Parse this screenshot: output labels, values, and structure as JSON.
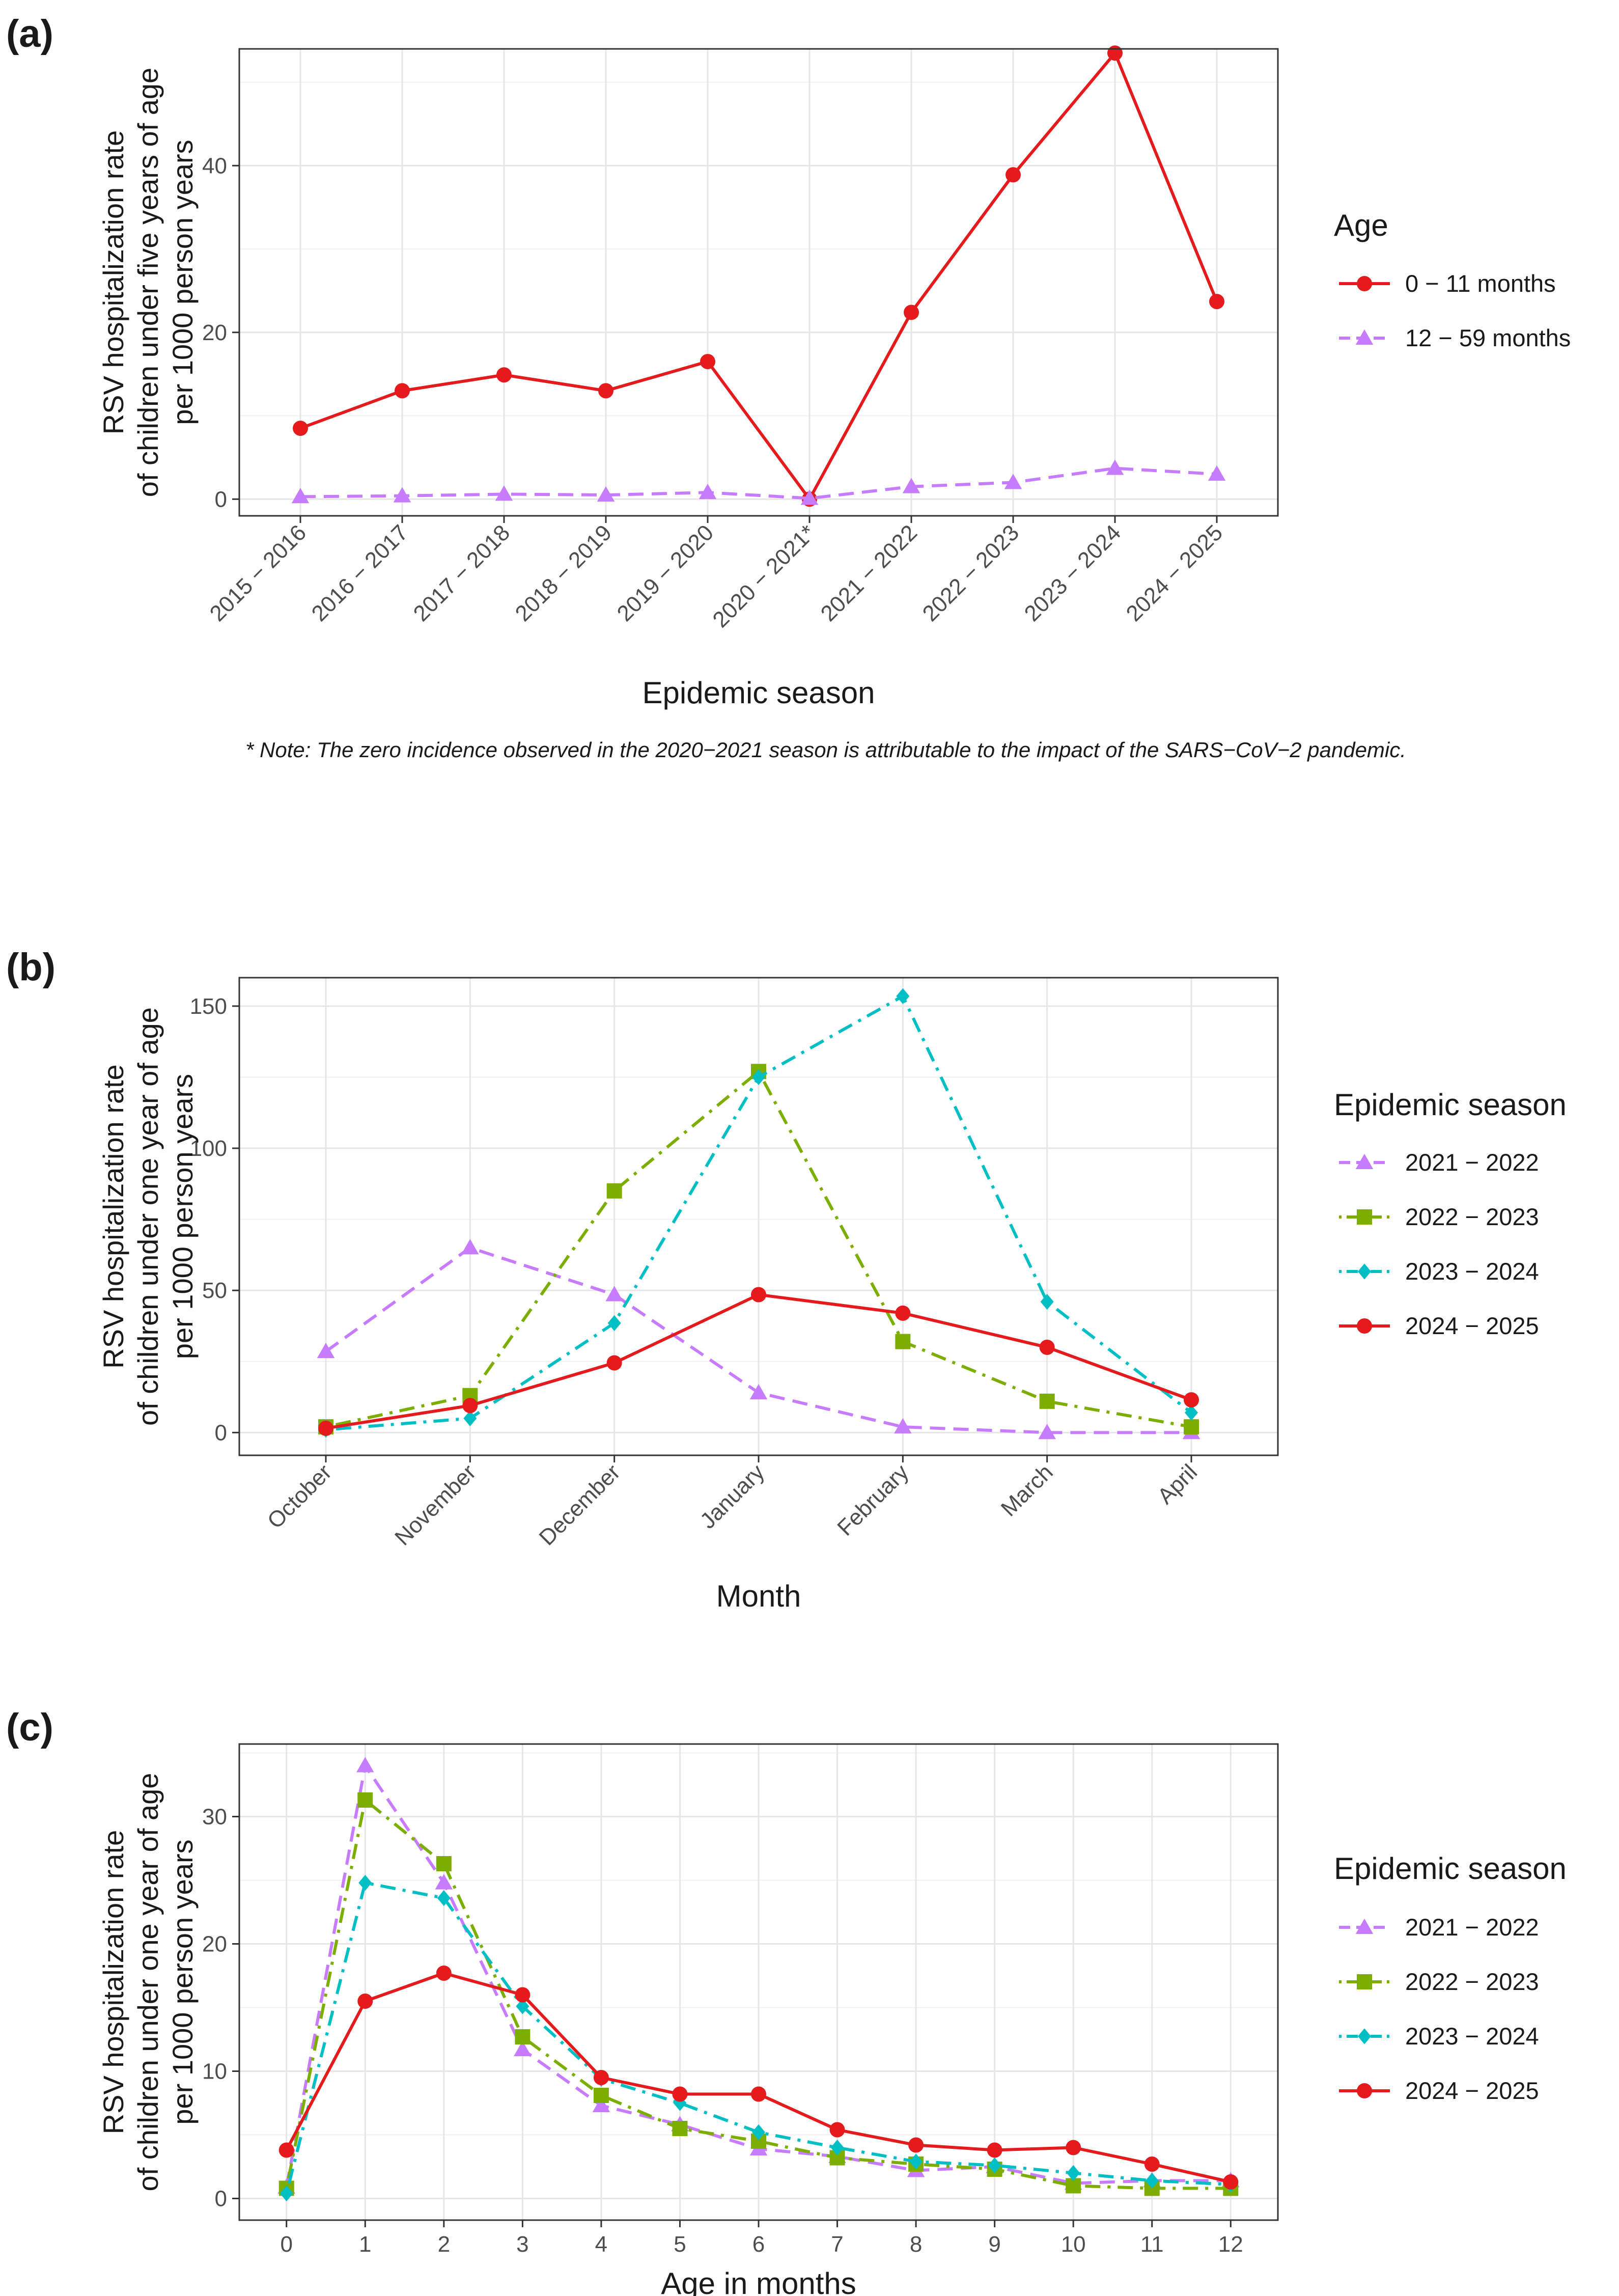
{
  "figure": {
    "panel_letters": [
      "(a)",
      "(b)",
      "(c)"
    ],
    "note": "* Note: The zero incidence observed in the 2020−2021 season is attributable to the impact of the SARS−CoV−2 pandemic."
  },
  "chart_data": [
    {
      "id": "a",
      "type": "line",
      "title": "",
      "xlabel": "Epidemic season",
      "ylabel_lines": [
        "RSV hospitalization rate",
        "of children under five years of age",
        "per 1000 person years"
      ],
      "legend_title": "Age",
      "categories": [
        "2015 − 2016",
        "2016 − 2017",
        "2017 − 2018",
        "2018 − 2019",
        "2019 − 2020",
        "2020 − 2021*",
        "2021 − 2022",
        "2022 − 2023",
        "2023 − 2024",
        "2024 − 2025"
      ],
      "ylim": [
        -2,
        54
      ],
      "yticks": [
        0,
        20,
        40
      ],
      "series": [
        {
          "name": "0 − 11 months",
          "color": "#e41a1c",
          "dash": "solid",
          "marker": "circle",
          "values": [
            8.5,
            13,
            14.9,
            13,
            16.5,
            0,
            22.4,
            38.9,
            53.5,
            23.7
          ]
        },
        {
          "name": "12 − 59 months",
          "color": "#c77cff",
          "dash": "dashed",
          "marker": "triangle",
          "values": [
            0.3,
            0.4,
            0.6,
            0.5,
            0.8,
            0.1,
            1.5,
            2.0,
            3.7,
            3.0
          ]
        }
      ]
    },
    {
      "id": "b",
      "type": "line",
      "title": "",
      "xlabel": "Month",
      "ylabel_lines": [
        "RSV hospitalization rate",
        "of children under one year of age",
        "per 1000 person years"
      ],
      "legend_title": "Epidemic season",
      "categories": [
        "October",
        "November",
        "December",
        "January",
        "February",
        "March",
        "April"
      ],
      "ylim": [
        -8,
        160
      ],
      "yticks": [
        0,
        50,
        100,
        150
      ],
      "series": [
        {
          "name": "2021 − 2022",
          "color": "#c77cff",
          "dash": "dashed",
          "marker": "triangle",
          "values": [
            28.5,
            65,
            48.5,
            14,
            2,
            0,
            0
          ]
        },
        {
          "name": "2022 − 2023",
          "color": "#7cae00",
          "dash": "dotdash",
          "marker": "square",
          "values": [
            2,
            13,
            85,
            127,
            32,
            11,
            2
          ]
        },
        {
          "name": "2023 − 2024",
          "color": "#00bfc4",
          "dash": "dotdash",
          "marker": "diamond",
          "values": [
            1,
            5,
            38.5,
            125,
            153.5,
            46,
            7
          ]
        },
        {
          "name": "2024 − 2025",
          "color": "#e41a1c",
          "dash": "solid",
          "marker": "circle",
          "values": [
            1.5,
            9.5,
            24.5,
            48.5,
            42,
            30,
            11.5
          ]
        }
      ]
    },
    {
      "id": "c",
      "type": "line",
      "title": "",
      "xlabel": "Age in months",
      "ylabel_lines": [
        "RSV hospitalization rate",
        "of children under one year of age",
        "per 1000 person years"
      ],
      "legend_title": "Epidemic season",
      "categories": [
        "0",
        "1",
        "2",
        "3",
        "4",
        "5",
        "6",
        "7",
        "8",
        "9",
        "10",
        "11",
        "12"
      ],
      "ylim": [
        -1.7,
        35.7
      ],
      "yticks": [
        0,
        10,
        20,
        30
      ],
      "series": [
        {
          "name": "2021 − 2022",
          "color": "#c77cff",
          "dash": "dashed",
          "marker": "triangle",
          "values": [
            0.9,
            34,
            24.8,
            11.7,
            7.3,
            5.8,
            3.9,
            3.3,
            2.2,
            2.5,
            1.2,
            1.4,
            1.4
          ]
        },
        {
          "name": "2022 − 2023",
          "color": "#7cae00",
          "dash": "dotdash",
          "marker": "square",
          "values": [
            0.8,
            31.3,
            26.3,
            12.7,
            8.1,
            5.5,
            4.5,
            3.2,
            2.7,
            2.3,
            1.0,
            0.8,
            0.8
          ]
        },
        {
          "name": "2023 − 2024",
          "color": "#00bfc4",
          "dash": "dotdash",
          "marker": "diamond",
          "values": [
            0.4,
            24.8,
            23.6,
            15.1,
            9.4,
            7.5,
            5.2,
            4.0,
            2.9,
            2.6,
            2.0,
            1.4,
            1.1
          ]
        },
        {
          "name": "2024 − 2025",
          "color": "#e41a1c",
          "dash": "solid",
          "marker": "circle",
          "values": [
            3.8,
            15.5,
            17.7,
            16.0,
            9.5,
            8.2,
            8.2,
            5.4,
            4.2,
            3.8,
            4.0,
            2.7,
            1.3
          ]
        }
      ]
    }
  ]
}
